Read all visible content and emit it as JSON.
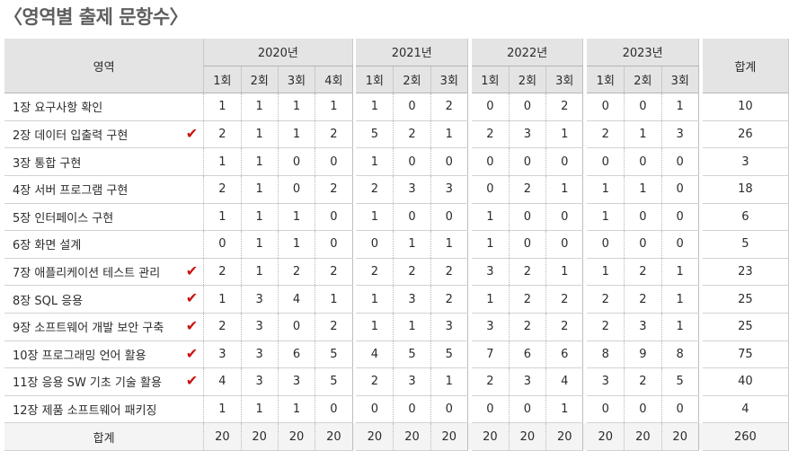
{
  "page_title": "〈영역별 출제 문항수〉",
  "header": {
    "area_label": "영역",
    "sum_label": "합계",
    "years": [
      "2020년",
      "2021년",
      "2022년",
      "2023년"
    ],
    "rounds": [
      [
        "1회",
        "2회",
        "3회",
        "4회"
      ],
      [
        "1회",
        "2회",
        "3회"
      ],
      [
        "1회",
        "2회",
        "3회"
      ],
      [
        "1회",
        "2회",
        "3회"
      ]
    ]
  },
  "check_mark": "✔",
  "rows": [
    {
      "name": "1장 요구사항 확인",
      "checked": false,
      "values": [
        1,
        1,
        1,
        1,
        1,
        0,
        2,
        0,
        0,
        2,
        0,
        0,
        1
      ],
      "total": 10
    },
    {
      "name": "2장 데이터 입출력 구현",
      "checked": true,
      "values": [
        2,
        1,
        1,
        2,
        5,
        2,
        1,
        2,
        3,
        1,
        2,
        1,
        3
      ],
      "total": 26
    },
    {
      "name": "3장 통합 구현",
      "checked": false,
      "values": [
        1,
        1,
        0,
        0,
        1,
        0,
        0,
        0,
        0,
        0,
        0,
        0,
        0
      ],
      "total": 3
    },
    {
      "name": "4장 서버 프로그램 구현",
      "checked": false,
      "values": [
        2,
        1,
        0,
        2,
        2,
        3,
        3,
        0,
        2,
        1,
        1,
        1,
        0
      ],
      "total": 18
    },
    {
      "name": "5장 인터페이스 구현",
      "checked": false,
      "values": [
        1,
        1,
        1,
        0,
        1,
        0,
        0,
        1,
        0,
        0,
        1,
        0,
        0
      ],
      "total": 6
    },
    {
      "name": "6장 화면 설계",
      "checked": false,
      "values": [
        0,
        1,
        1,
        0,
        0,
        1,
        1,
        1,
        0,
        0,
        0,
        0,
        0
      ],
      "total": 5
    },
    {
      "name": "7장 애플리케이션 테스트 관리",
      "checked": true,
      "values": [
        2,
        1,
        2,
        2,
        2,
        2,
        2,
        3,
        2,
        1,
        1,
        2,
        1
      ],
      "total": 23
    },
    {
      "name": "8장 SQL 응용",
      "checked": true,
      "values": [
        1,
        3,
        4,
        1,
        1,
        3,
        2,
        1,
        2,
        2,
        2,
        2,
        1
      ],
      "total": 25
    },
    {
      "name": "9장 소프트웨어 개발 보안 구축",
      "checked": true,
      "values": [
        2,
        3,
        0,
        2,
        1,
        1,
        3,
        3,
        2,
        2,
        2,
        3,
        1
      ],
      "total": 25
    },
    {
      "name": "10장 프로그래밍 언어 활용",
      "checked": true,
      "values": [
        3,
        3,
        6,
        5,
        4,
        5,
        5,
        7,
        6,
        6,
        8,
        9,
        8
      ],
      "total": 75
    },
    {
      "name": "11장 응용 SW 기초 기술 활용",
      "checked": true,
      "values": [
        4,
        3,
        3,
        5,
        2,
        3,
        1,
        2,
        3,
        4,
        3,
        2,
        5
      ],
      "total": 40
    },
    {
      "name": "12장 제품 소프트웨어 패키징",
      "checked": false,
      "values": [
        1,
        1,
        1,
        0,
        0,
        0,
        0,
        0,
        0,
        1,
        0,
        0,
        0
      ],
      "total": 4
    }
  ],
  "total_row": {
    "label": "합계",
    "values": [
      20,
      20,
      20,
      20,
      20,
      20,
      20,
      20,
      20,
      20,
      20,
      20,
      20
    ],
    "total": 260
  }
}
